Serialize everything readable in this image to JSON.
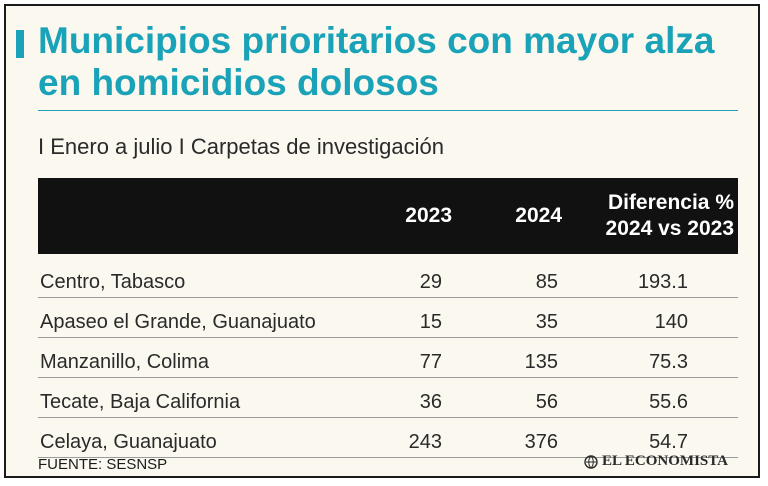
{
  "header": {
    "title": "Municipios prioritarios con mayor alza en homicidios dolosos",
    "subtitle": "I Enero a julio I Carpetas de investigación"
  },
  "colors": {
    "accent": "#1aa3b8",
    "header_bg": "#111111",
    "background": "#fbf8ef"
  },
  "chart_data": {
    "type": "table",
    "title": "Municipios prioritarios con mayor alza en homicidios dolosos",
    "subtitle": "I Enero a julio I Carpetas de investigación",
    "columns": [
      "",
      "2023",
      "2024",
      "Diferencia % 2024 vs 2023"
    ],
    "header_diff_line1": "Diferencia %",
    "header_diff_line2": "2024 vs 2023",
    "rows": [
      {
        "municipio": "Centro, Tabasco",
        "y2023": "29",
        "y2024": "85",
        "diff": "193.1"
      },
      {
        "municipio": "Apaseo el Grande, Guanajuato",
        "y2023": "15",
        "y2024": "35",
        "diff": "140"
      },
      {
        "municipio": "Manzanillo, Colima",
        "y2023": "77",
        "y2024": "135",
        "diff": "75.3"
      },
      {
        "municipio": "Tecate, Baja California",
        "y2023": "36",
        "y2024": "56",
        "diff": "55.6"
      },
      {
        "municipio": "Celaya, Guanajuato",
        "y2023": "243",
        "y2024": "376",
        "diff": "54.7"
      }
    ]
  },
  "footer": {
    "source": "FUENTE: SESNSP",
    "logo_text": "EL ECONOMISTA",
    "logo_icon": "el-economista-globe-icon"
  }
}
